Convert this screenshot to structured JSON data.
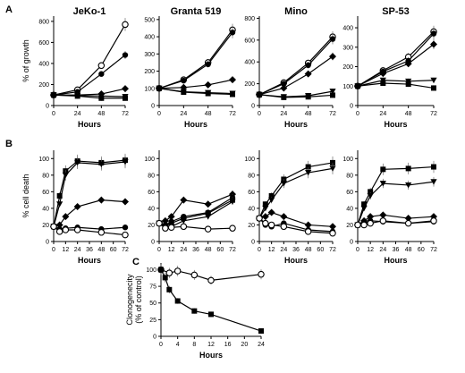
{
  "chart_data": [
    {
      "type": "line",
      "panel": "A",
      "title": "JeKo-1",
      "xlabel": "Hours",
      "ylabel": "% of growth",
      "x": [
        0,
        24,
        48,
        72
      ],
      "xticks": [
        0,
        24,
        48,
        72
      ],
      "yticks": [
        0,
        200,
        400,
        600,
        800
      ],
      "ylim": [
        0,
        850
      ],
      "series": [
        {
          "marker": "open-circle",
          "values": [
            100,
            150,
            380,
            770
          ]
        },
        {
          "marker": "filled-circle",
          "values": [
            100,
            130,
            300,
            480
          ]
        },
        {
          "marker": "diamond",
          "values": [
            100,
            100,
            110,
            160
          ]
        },
        {
          "marker": "triangle-down",
          "values": [
            100,
            95,
            90,
            85
          ]
        },
        {
          "marker": "square",
          "values": [
            100,
            90,
            70,
            70
          ]
        }
      ]
    },
    {
      "type": "line",
      "panel": "A",
      "title": "Granta 519",
      "xlabel": "Hours",
      "ylabel": "",
      "x": [
        0,
        24,
        48,
        72
      ],
      "xticks": [
        0,
        24,
        48,
        72
      ],
      "yticks": [
        0,
        100,
        200,
        300,
        400,
        500
      ],
      "ylim": [
        0,
        520
      ],
      "series": [
        {
          "marker": "open-circle",
          "values": [
            100,
            150,
            250,
            440
          ]
        },
        {
          "marker": "filled-circle",
          "values": [
            100,
            145,
            240,
            425
          ]
        },
        {
          "marker": "diamond",
          "values": [
            100,
            105,
            120,
            150
          ]
        },
        {
          "marker": "triangle-down",
          "values": [
            100,
            80,
            75,
            70
          ]
        },
        {
          "marker": "square",
          "values": [
            100,
            78,
            70,
            65
          ]
        }
      ]
    },
    {
      "type": "line",
      "panel": "A",
      "title": "Mino",
      "xlabel": "Hours",
      "ylabel": "",
      "x": [
        0,
        24,
        48,
        72
      ],
      "xticks": [
        0,
        24,
        48,
        72
      ],
      "yticks": [
        0,
        200,
        400,
        600,
        800
      ],
      "ylim": [
        0,
        820
      ],
      "series": [
        {
          "marker": "open-circle",
          "values": [
            100,
            210,
            390,
            630
          ]
        },
        {
          "marker": "filled-circle",
          "values": [
            100,
            200,
            370,
            610
          ]
        },
        {
          "marker": "diamond",
          "values": [
            100,
            160,
            290,
            450
          ]
        },
        {
          "marker": "triangle-down",
          "values": [
            100,
            80,
            90,
            130
          ]
        },
        {
          "marker": "square",
          "values": [
            100,
            75,
            80,
            95
          ]
        }
      ]
    },
    {
      "type": "line",
      "panel": "A",
      "title": "SP-53",
      "xlabel": "Hours",
      "ylabel": "",
      "x": [
        0,
        24,
        48,
        72
      ],
      "xticks": [
        0,
        24,
        48,
        72
      ],
      "yticks": [
        0,
        100,
        200,
        300,
        400
      ],
      "ylim": [
        0,
        460
      ],
      "series": [
        {
          "marker": "open-circle",
          "values": [
            100,
            180,
            250,
            380
          ]
        },
        {
          "marker": "filled-circle",
          "values": [
            100,
            175,
            230,
            370
          ]
        },
        {
          "marker": "diamond",
          "values": [
            100,
            165,
            215,
            315
          ]
        },
        {
          "marker": "triangle-down",
          "values": [
            100,
            130,
            125,
            130
          ]
        },
        {
          "marker": "square",
          "values": [
            100,
            115,
            110,
            90
          ]
        }
      ]
    },
    {
      "type": "line",
      "panel": "B",
      "title": "",
      "xlabel": "Hours",
      "ylabel": "% cell death",
      "x": [
        0,
        6,
        12,
        24,
        48,
        72
      ],
      "xticks": [
        0,
        12,
        24,
        36,
        48,
        60,
        72
      ],
      "yticks": [
        0,
        20,
        40,
        60,
        80,
        100
      ],
      "ylim": [
        0,
        110
      ],
      "series": [
        {
          "marker": "square",
          "values": [
            18,
            55,
            85,
            97,
            95,
            98
          ]
        },
        {
          "marker": "triangle-down",
          "values": [
            18,
            45,
            80,
            95,
            93,
            96
          ]
        },
        {
          "marker": "diamond",
          "values": [
            18,
            20,
            30,
            42,
            50,
            48
          ]
        },
        {
          "marker": "filled-circle",
          "values": [
            18,
            15,
            16,
            17,
            15,
            17
          ]
        },
        {
          "marker": "open-circle",
          "values": [
            18,
            12,
            14,
            14,
            11,
            8
          ]
        }
      ]
    },
    {
      "type": "line",
      "panel": "B",
      "title": "",
      "xlabel": "",
      "ylabel": "",
      "x": [
        0,
        6,
        12,
        24,
        48,
        72
      ],
      "xticks": [
        0,
        12,
        24,
        36,
        48,
        60,
        72
      ],
      "yticks": [
        0,
        20,
        40,
        60,
        80,
        100
      ],
      "ylim": [
        0,
        110
      ],
      "series": [
        {
          "marker": "diamond",
          "values": [
            22,
            25,
            30,
            50,
            45,
            57
          ]
        },
        {
          "marker": "filled-circle",
          "values": [
            22,
            20,
            24,
            30,
            35,
            53
          ]
        },
        {
          "marker": "square",
          "values": [
            22,
            18,
            22,
            28,
            34,
            50
          ]
        },
        {
          "marker": "triangle-down",
          "values": [
            22,
            17,
            18,
            25,
            30,
            48
          ]
        },
        {
          "marker": "open-circle",
          "values": [
            22,
            16,
            17,
            18,
            15,
            16
          ]
        }
      ]
    },
    {
      "type": "line",
      "panel": "B",
      "title": "",
      "xlabel": "Hours",
      "ylabel": "",
      "x": [
        0,
        6,
        12,
        24,
        48,
        72
      ],
      "xticks": [
        0,
        12,
        24,
        36,
        48,
        60,
        72
      ],
      "yticks": [
        0,
        20,
        40,
        60,
        80,
        100
      ],
      "ylim": [
        0,
        110
      ],
      "series": [
        {
          "marker": "square",
          "values": [
            28,
            45,
            55,
            75,
            90,
            95
          ]
        },
        {
          "marker": "triangle-down",
          "values": [
            28,
            40,
            50,
            70,
            83,
            88
          ]
        },
        {
          "marker": "diamond",
          "values": [
            28,
            30,
            35,
            30,
            20,
            18
          ]
        },
        {
          "marker": "filled-circle",
          "values": [
            28,
            20,
            18,
            22,
            14,
            12
          ]
        },
        {
          "marker": "open-circle",
          "values": [
            28,
            22,
            20,
            18,
            12,
            10
          ]
        }
      ]
    },
    {
      "type": "line",
      "panel": "B",
      "title": "",
      "xlabel": "Hours",
      "ylabel": "",
      "x": [
        0,
        6,
        12,
        24,
        48,
        72
      ],
      "xticks": [
        0,
        12,
        24,
        36,
        48,
        60,
        72
      ],
      "yticks": [
        0,
        20,
        40,
        60,
        80,
        100
      ],
      "ylim": [
        0,
        110
      ],
      "series": [
        {
          "marker": "square",
          "values": [
            20,
            45,
            60,
            87,
            88,
            90
          ]
        },
        {
          "marker": "triangle-down",
          "values": [
            20,
            40,
            55,
            70,
            68,
            72
          ]
        },
        {
          "marker": "diamond",
          "values": [
            20,
            25,
            30,
            32,
            28,
            30
          ]
        },
        {
          "marker": "filled-circle",
          "values": [
            20,
            22,
            25,
            24,
            22,
            24
          ]
        },
        {
          "marker": "open-circle",
          "values": [
            20,
            20,
            22,
            25,
            22,
            25
          ]
        }
      ]
    },
    {
      "type": "line",
      "panel": "C",
      "title": "",
      "xlabel": "Hours",
      "ylabel": "Clonogenecity (% of control)",
      "x": [
        0,
        1,
        2,
        4,
        8,
        12,
        24
      ],
      "xticks": [
        0,
        4,
        8,
        12,
        16,
        20,
        24
      ],
      "yticks": [
        0,
        25,
        50,
        75,
        100
      ],
      "ylim": [
        0,
        110
      ],
      "series": [
        {
          "marker": "open-circle",
          "x": [
            0,
            2,
            4,
            8,
            12,
            24
          ],
          "values": [
            100,
            95,
            98,
            92,
            84,
            93
          ]
        },
        {
          "marker": "square",
          "x": [
            0,
            1,
            2,
            4,
            8,
            12,
            24
          ],
          "values": [
            100,
            88,
            70,
            53,
            38,
            33,
            8
          ]
        }
      ]
    }
  ]
}
